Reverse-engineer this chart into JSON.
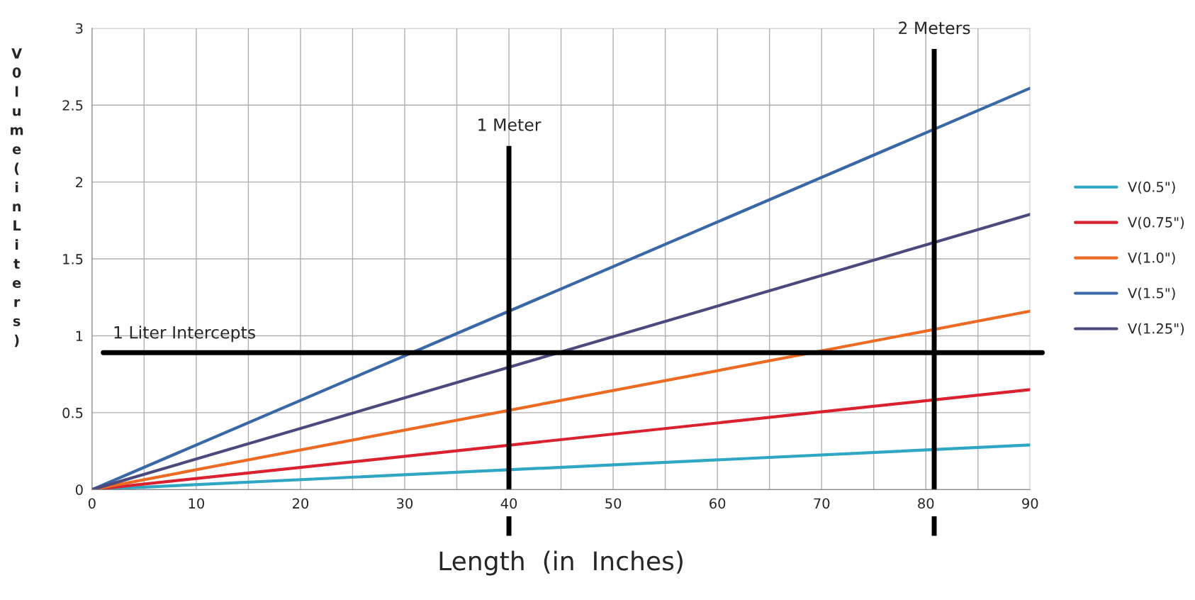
{
  "chart_data": {
    "type": "line",
    "xlabel": "Length  (in  Inches)",
    "ylabel": "V0lume (in Liters)",
    "x": [
      0,
      90
    ],
    "series": [
      {
        "name": "V(0.5\")",
        "color": "#2ea6c4",
        "values": [
          0,
          0.29
        ]
      },
      {
        "name": "V(0.75\")",
        "color": "#d9212f",
        "values": [
          0,
          0.65
        ]
      },
      {
        "name": "V(1.0\")",
        "color": "#ed6a23",
        "values": [
          0,
          1.16
        ]
      },
      {
        "name": "V(1.5\")",
        "color": "#3a67a6",
        "values": [
          0,
          2.61
        ]
      },
      {
        "name": "V(1.25\")",
        "color": "#4a4a7e",
        "values": [
          0,
          1.79
        ]
      }
    ],
    "xlim": [
      0,
      90
    ],
    "xticks": [
      0,
      {
        "value": 5,
        "label": null
      },
      10,
      {
        "value": 15,
        "label": null
      },
      20,
      {
        "value": 25,
        "label": null
      },
      30,
      {
        "value": 35,
        "label": null
      },
      40,
      {
        "value": 45,
        "label": null
      },
      50,
      {
        "value": 55,
        "label": null
      },
      60,
      {
        "value": 65,
        "label": null
      },
      70,
      {
        "value": 75,
        "label": null
      },
      80,
      {
        "value": 85,
        "label": null
      },
      90
    ],
    "ylim": [
      0,
      3
    ],
    "yticks": [
      0,
      0.5,
      1,
      1.5,
      2,
      2.5,
      3
    ],
    "ref_lines": [
      {
        "axis": "x",
        "value": 40,
        "label": "1 Meter",
        "color": "#000000",
        "line_style": "solid"
      },
      {
        "axis": "x",
        "value": 80.8,
        "label": "2 Meters",
        "color": "#000000",
        "line_style": "solid"
      },
      {
        "axis": "y",
        "value": 0.89,
        "label": "1 Liter Intercepts",
        "color": "#000000",
        "line_style": "solid"
      }
    ],
    "grid": true,
    "legend": "right",
    "marker": "none",
    "line_style": "solid"
  }
}
